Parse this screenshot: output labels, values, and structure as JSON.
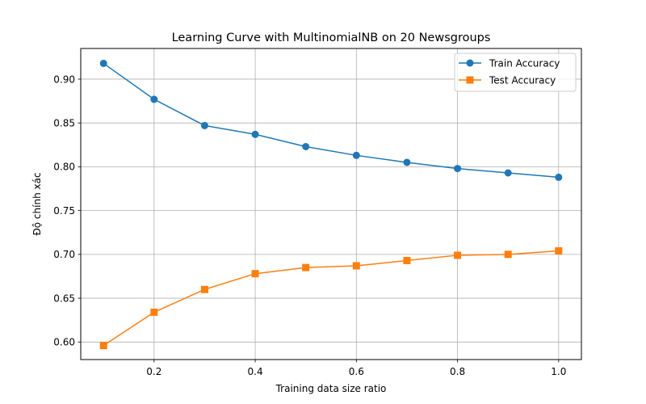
{
  "chart_data": {
    "type": "line",
    "title": "Learning Curve with MultinomialNB on 20 Newsgroups",
    "xlabel": "Training data size ratio",
    "ylabel": "Độ chính xác",
    "xlim": [
      0.055,
      1.045
    ],
    "ylim": [
      0.58,
      0.935
    ],
    "xticks": [
      "0.2",
      "0.4",
      "0.6",
      "0.8",
      "1.0"
    ],
    "yticks": [
      "0.60",
      "0.65",
      "0.70",
      "0.75",
      "0.80",
      "0.85",
      "0.90"
    ],
    "grid": true,
    "legend_position": "top-right",
    "x": [
      0.1,
      0.2,
      0.3,
      0.4,
      0.5,
      0.6,
      0.7,
      0.8,
      0.9,
      1.0
    ],
    "series": [
      {
        "name": "Train Accuracy",
        "color": "#1f77b4",
        "marker": "circle",
        "values": [
          0.918,
          0.877,
          0.847,
          0.837,
          0.823,
          0.813,
          0.805,
          0.798,
          0.793,
          0.788
        ]
      },
      {
        "name": "Test Accuracy",
        "color": "#ff7f0e",
        "marker": "square",
        "values": [
          0.596,
          0.634,
          0.66,
          0.678,
          0.685,
          0.687,
          0.693,
          0.699,
          0.7,
          0.704
        ]
      }
    ]
  }
}
